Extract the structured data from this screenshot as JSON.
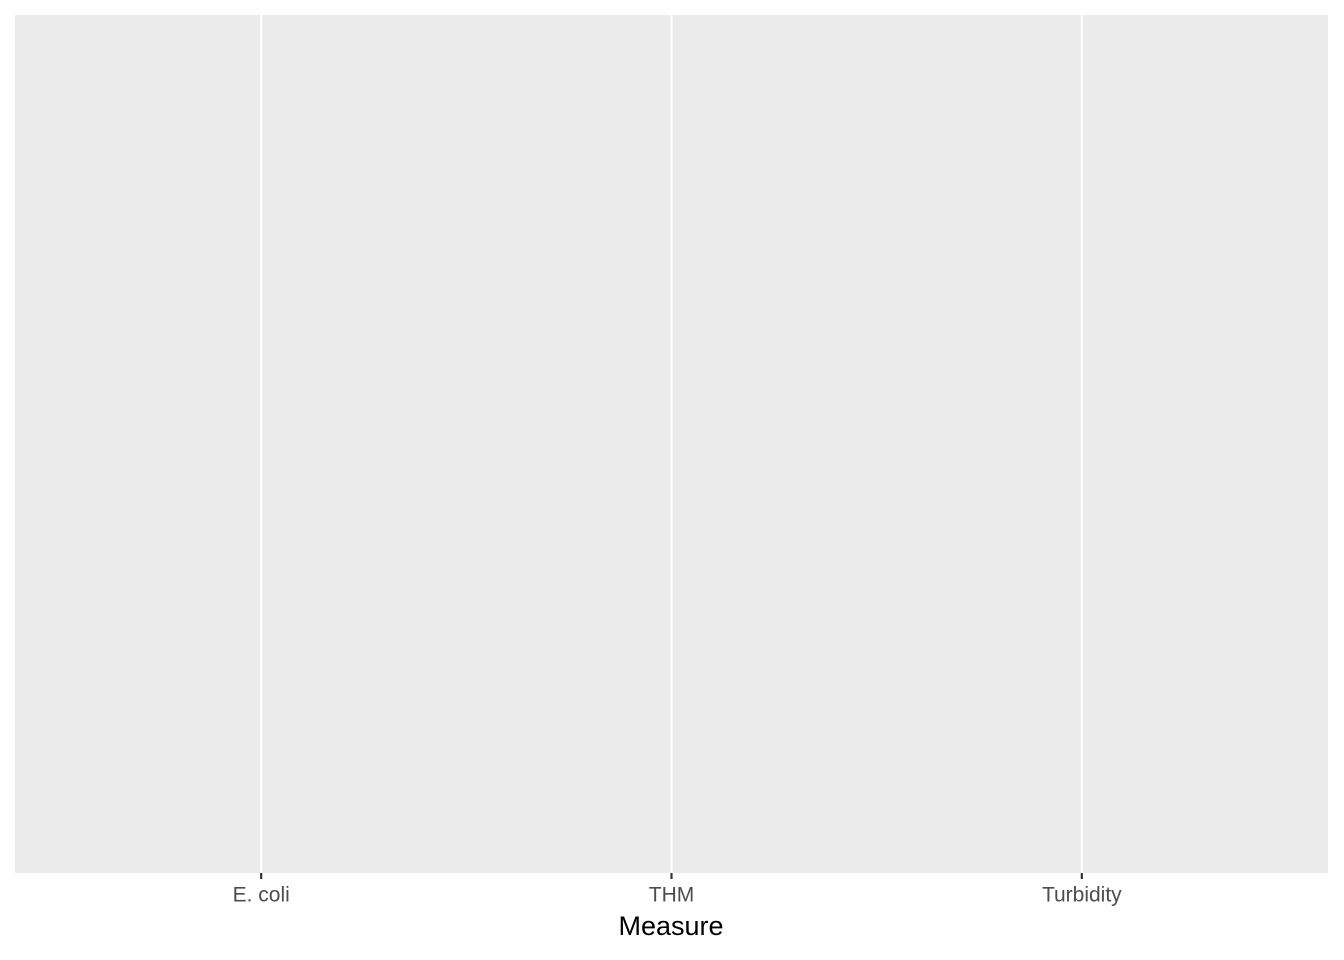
{
  "chart_data": {
    "type": "bar",
    "categories": [
      "E. coli",
      "THM",
      "Turbidity"
    ],
    "xlabel": "Measure",
    "grid": true
  }
}
